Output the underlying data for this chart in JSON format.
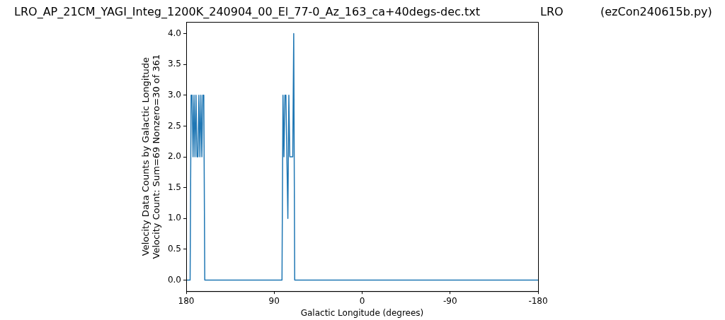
{
  "chart_data": {
    "type": "line",
    "title": "LRO_AP_21CM_YAGI_Integ_1200K_240904_00_El_77-0_Az_163_ca+40degs-dec.txt",
    "annotations": [
      "LRO",
      "(ezCon240615b.py)"
    ],
    "xlabel": "Galactic Longitude (degrees)",
    "ylabel": "Velocity Data Counts by Galactic Longitude\nVelocity Count: Sum=69 Nonzero=30 of 361",
    "x": [
      180,
      176,
      175,
      174,
      173,
      172,
      171,
      170,
      169,
      168,
      167,
      166,
      165,
      164,
      163,
      162,
      161,
      82,
      81,
      80,
      79,
      78,
      77,
      76,
      75,
      74,
      73,
      72,
      71,
      70,
      69,
      -180
    ],
    "series": [
      {
        "color": "#1f77b4",
        "values": [
          0,
          0,
          3,
          3,
          2,
          3,
          2,
          3,
          2,
          2,
          3,
          2,
          3,
          2,
          3,
          3,
          0,
          0,
          3,
          2,
          3,
          3,
          2,
          1,
          3,
          2,
          2,
          2,
          2,
          4,
          0,
          0
        ]
      }
    ],
    "xlim": [
      180,
      -180
    ],
    "xticks": [
      180,
      90,
      0,
      -90,
      -180
    ],
    "ylim": [
      -0.18,
      4.19
    ],
    "yticks": [
      {
        "value": 0,
        "label": "0.0"
      },
      {
        "value": 0.5,
        "label": "0.5"
      },
      {
        "value": 1,
        "label": "1.0"
      },
      {
        "value": 1.5,
        "label": "1.5"
      },
      {
        "value": 2,
        "label": "2.0"
      },
      {
        "value": 2.5,
        "label": "2.5"
      },
      {
        "value": 3,
        "label": "3.0"
      },
      {
        "value": 3.5,
        "label": "3.5"
      },
      {
        "value": 4,
        "label": "4.0"
      }
    ],
    "grid": false,
    "legend": false,
    "marker": "none",
    "line_style": "solid"
  }
}
